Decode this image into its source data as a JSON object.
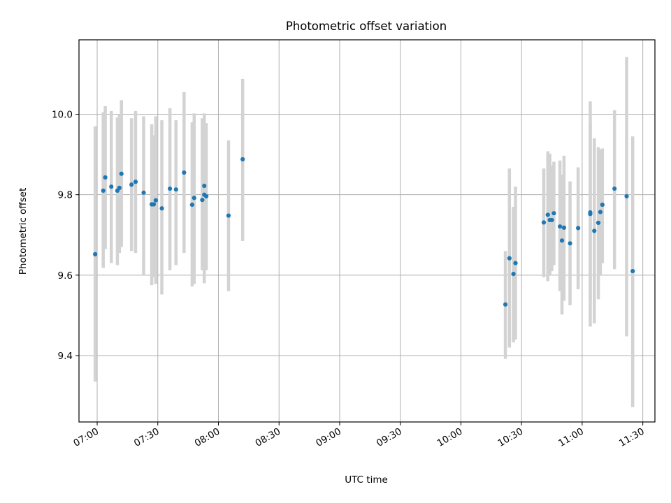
{
  "chart_data": {
    "type": "scatter",
    "title": "Photometric offset variation",
    "xlabel": "UTC time",
    "ylabel": "Photometric offset",
    "grid": true,
    "legend": "none",
    "x_axis": {
      "kind": "time",
      "range": [
        "06:51",
        "11:36"
      ],
      "ticks": [
        "07:00",
        "07:30",
        "08:00",
        "08:30",
        "09:00",
        "09:30",
        "10:00",
        "10:30",
        "11:00",
        "11:30"
      ],
      "tick_label_rotation": 30
    },
    "y_axis": {
      "range": [
        9.235,
        10.185
      ],
      "ticks": [
        9.4,
        9.6,
        9.8,
        10.0
      ],
      "tick_labels": [
        "9.4",
        "9.6",
        "9.8",
        "10.0"
      ]
    },
    "colors": {
      "points": "#1f77b4",
      "errorbars": "#d3d3d3"
    },
    "series": [
      {
        "x": [
          "06:59",
          "07:03",
          "07:04",
          "07:07",
          "07:10",
          "07:11",
          "07:12",
          "07:17",
          "07:19",
          "07:23",
          "07:27",
          "07:28",
          "07:29",
          "07:32",
          "07:36",
          "07:39",
          "07:43",
          "07:47",
          "07:48",
          "07:52",
          "07:53",
          "07:53",
          "07:54",
          "08:05",
          "08:12",
          "10:22",
          "10:24",
          "10:26",
          "10:27",
          "10:41",
          "10:43",
          "10:44",
          "10:45",
          "10:46",
          "10:49",
          "10:50",
          "10:51",
          "10:54",
          "10:58",
          "11:04",
          "11:04",
          "11:06",
          "11:08",
          "11:09",
          "11:10",
          "11:16",
          "11:22",
          "11:25"
        ],
        "y": [
          9.652,
          9.81,
          9.843,
          9.82,
          9.81,
          9.817,
          9.852,
          9.825,
          9.832,
          9.805,
          9.776,
          9.776,
          9.786,
          9.766,
          9.815,
          9.813,
          9.855,
          9.775,
          9.792,
          9.787,
          9.8,
          9.822,
          9.796,
          9.748,
          9.888,
          9.527,
          9.642,
          9.603,
          9.63,
          9.731,
          9.75,
          9.737,
          9.737,
          9.754,
          9.721,
          9.686,
          9.718,
          9.679,
          9.717,
          9.756,
          9.752,
          9.71,
          9.73,
          9.757,
          9.775,
          9.815,
          9.796,
          9.61
        ],
        "err_low": [
          9.335,
          9.618,
          9.665,
          9.63,
          9.625,
          9.655,
          9.67,
          9.66,
          9.655,
          9.6,
          9.575,
          9.595,
          9.578,
          9.552,
          9.612,
          9.625,
          9.655,
          9.572,
          9.578,
          9.612,
          9.58,
          9.628,
          9.612,
          9.56,
          9.685,
          9.392,
          9.42,
          9.433,
          9.44,
          9.595,
          9.585,
          9.6,
          9.61,
          9.625,
          9.56,
          9.502,
          9.536,
          9.525,
          9.565,
          9.472,
          9.535,
          9.48,
          9.54,
          9.6,
          9.63,
          9.615,
          9.448,
          9.272
        ],
        "err_high": [
          9.97,
          10.005,
          10.02,
          10.008,
          9.992,
          10.0,
          10.035,
          9.99,
          10.008,
          9.995,
          9.975,
          9.948,
          9.995,
          9.985,
          10.015,
          9.985,
          10.055,
          9.98,
          10.002,
          9.99,
          10.002,
          9.975,
          9.978,
          9.935,
          10.088,
          9.66,
          9.865,
          9.77,
          9.82,
          9.865,
          9.908,
          9.902,
          9.872,
          9.882,
          9.885,
          9.85,
          9.897,
          9.833,
          9.868,
          10.032,
          9.978,
          9.94,
          9.918,
          9.912,
          9.915,
          10.01,
          10.142,
          9.945
        ]
      }
    ]
  }
}
